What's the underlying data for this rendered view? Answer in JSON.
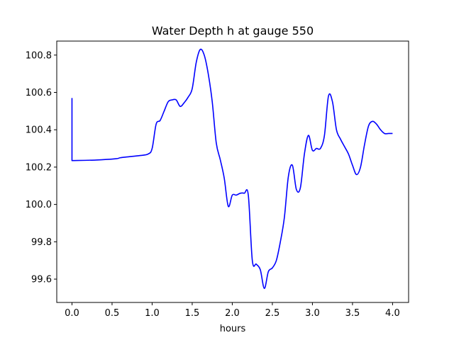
{
  "chart_data": {
    "type": "line",
    "title": "Water Depth h at gauge 550",
    "xlabel": "hours",
    "ylabel": "",
    "xlim": [
      -0.19,
      4.2
    ],
    "ylim": [
      99.475,
      100.875
    ],
    "xticks": [
      0.0,
      0.5,
      1.0,
      1.5,
      2.0,
      2.5,
      3.0,
      3.5,
      4.0
    ],
    "xtick_labels": [
      "0.0",
      "0.5",
      "1.0",
      "1.5",
      "2.0",
      "2.5",
      "3.0",
      "3.5",
      "4.0"
    ],
    "yticks": [
      99.6,
      99.8,
      100.0,
      100.2,
      100.4,
      100.6,
      100.8
    ],
    "ytick_labels": [
      "99.6",
      "99.8",
      "100.0",
      "100.2",
      "100.4",
      "100.6",
      "100.8"
    ],
    "grid": false,
    "series": [
      {
        "color": "#0000ff",
        "x": [
          0.0,
          0.0,
          0.3,
          0.55,
          0.6,
          0.7,
          0.85,
          0.95,
          1.0,
          1.05,
          1.1,
          1.15,
          1.2,
          1.25,
          1.3,
          1.35,
          1.4,
          1.45,
          1.5,
          1.55,
          1.6,
          1.65,
          1.7,
          1.75,
          1.8,
          1.85,
          1.9,
          1.95,
          2.0,
          2.05,
          2.1,
          2.15,
          2.2,
          2.25,
          2.3,
          2.35,
          2.4,
          2.45,
          2.5,
          2.55,
          2.6,
          2.65,
          2.7,
          2.75,
          2.8,
          2.85,
          2.9,
          2.95,
          3.0,
          3.05,
          3.1,
          3.15,
          3.2,
          3.25,
          3.3,
          3.35,
          3.4,
          3.45,
          3.5,
          3.55,
          3.6,
          3.65,
          3.7,
          3.75,
          3.8,
          3.85,
          3.9,
          3.95,
          4.0
        ],
        "y": [
          100.57,
          100.235,
          100.238,
          100.245,
          100.25,
          100.255,
          100.262,
          100.27,
          100.3,
          100.43,
          100.45,
          100.5,
          100.55,
          100.56,
          100.56,
          100.525,
          100.545,
          100.575,
          100.62,
          100.76,
          100.83,
          100.8,
          100.7,
          100.55,
          100.33,
          100.24,
          100.14,
          99.99,
          100.05,
          100.05,
          100.06,
          100.06,
          100.05,
          99.7,
          99.68,
          99.65,
          99.55,
          99.64,
          99.66,
          99.7,
          99.8,
          99.93,
          100.15,
          100.21,
          100.08,
          100.09,
          100.27,
          100.37,
          100.29,
          100.3,
          100.3,
          100.37,
          100.58,
          100.55,
          100.4,
          100.35,
          100.31,
          100.27,
          100.21,
          100.16,
          100.2,
          100.32,
          100.42,
          100.445,
          100.43,
          100.4,
          100.38,
          100.38,
          100.38
        ]
      }
    ]
  }
}
